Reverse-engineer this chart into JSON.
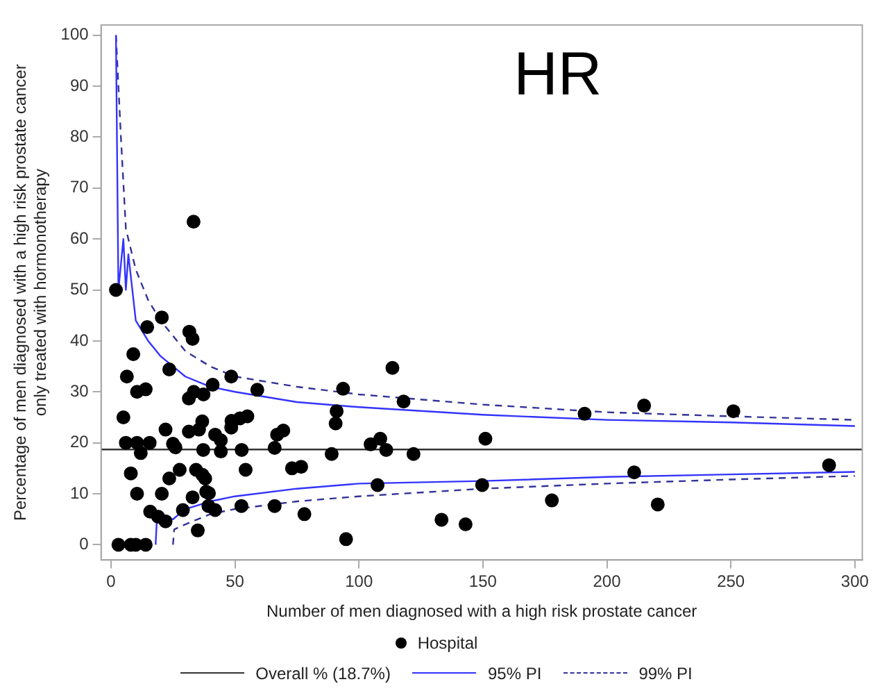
{
  "chart_data": {
    "type": "scatter",
    "title": "HR",
    "xlabel": "Number of men diagnosed with a high risk prostate cancer",
    "ylabel": "Percentage of men diagnosed with a high risk prostate cancer\nonly treated with hormonotherapy",
    "xlim": [
      -4,
      303
    ],
    "xticks": [
      0,
      50,
      100,
      150,
      200,
      250,
      300
    ],
    "ylim": [
      -3,
      102
    ],
    "yticks": [
      0,
      10,
      20,
      30,
      40,
      50,
      60,
      70,
      80,
      90,
      100
    ],
    "grid": false,
    "legend": "bottom",
    "marker": "circle",
    "ref_lines": [
      {
        "axis": "y",
        "value": 18.7,
        "label": "Overall % (18.7%)",
        "color": "#333333",
        "line_style": "solid"
      }
    ],
    "series": [
      {
        "name": "Hospital",
        "color": "#000000",
        "x": [
          2,
          3,
          8,
          10,
          14,
          5,
          6,
          6.4,
          9,
          8,
          10.5,
          10.5,
          12,
          10.5,
          14,
          14.6,
          15.6,
          15.8,
          19,
          20.5,
          20.5,
          22,
          22,
          23.5,
          23.5,
          25,
          26,
          27.7,
          29,
          31.4,
          31.4,
          31.6,
          32.9,
          33.3,
          32.9,
          33.4,
          34.3,
          35,
          35.5,
          36.8,
          37.2,
          36.9,
          38,
          37.3,
          38.4,
          39.5,
          39.3,
          42,
          41,
          42,
          44.3,
          44.3,
          48.5,
          48.5,
          48.6,
          52,
          52.7,
          54.3,
          55,
          52.6,
          59,
          66,
          66,
          67,
          69.5,
          73,
          76.7,
          78,
          89,
          90.6,
          91,
          93.6,
          94.8,
          104.7,
          107.5,
          108.6,
          111,
          113.5,
          118,
          122,
          133.3,
          143,
          149.7,
          151,
          177.8,
          191,
          215,
          251,
          211,
          220.5,
          289.6
        ],
        "values": [
          50,
          0,
          0,
          0,
          0,
          25,
          20,
          33,
          37.4,
          14,
          10,
          20,
          18,
          30,
          30.5,
          42.7,
          20,
          6.5,
          5.5,
          44.6,
          10,
          4.6,
          22.6,
          34.4,
          13,
          19.8,
          19.1,
          14.7,
          6.8,
          28.7,
          22.2,
          41.8,
          40.4,
          63.4,
          9.3,
          30,
          14.7,
          2.8,
          22.6,
          24.2,
          18.6,
          13.7,
          13,
          29.5,
          10.4,
          10.1,
          7.6,
          6.8,
          31.4,
          21.6,
          20.5,
          18.3,
          33,
          23,
          24.3,
          24.8,
          18.6,
          14.7,
          25.2,
          7.6,
          30.4,
          7.6,
          19,
          21.6,
          22.4,
          15,
          15.3,
          6,
          17.8,
          23.8,
          26.2,
          30.6,
          1.1,
          19.7,
          11.7,
          20.8,
          18.6,
          34.7,
          28.1,
          17.8,
          4.9,
          4,
          11.7,
          20.8,
          8.7,
          25.7,
          27.3,
          26.2,
          14.2,
          7.9,
          15.6
        ]
      },
      {
        "name": "95% PI",
        "type": "line",
        "color": "#3333ff",
        "line_style": "solid",
        "marker": "none",
        "x": [
          2,
          3,
          5,
          6,
          7,
          10,
          15,
          20,
          30,
          40,
          50,
          75,
          100,
          150,
          200,
          250,
          300
        ],
        "values": [
          100,
          50,
          60,
          50,
          57,
          44,
          40,
          37,
          33,
          31,
          30,
          28,
          27,
          25.5,
          24.5,
          24,
          23.3
        ]
      },
      {
        "type": "line",
        "color": "#3333ff",
        "line_style": "solid",
        "marker": "none",
        "x": [
          18,
          18.5,
          25,
          30,
          40,
          50,
          75,
          100,
          150,
          200,
          250,
          300
        ],
        "values": [
          0,
          5,
          5,
          7,
          8.5,
          9.5,
          11,
          12,
          12.5,
          13.3,
          13.8,
          14.3
        ]
      },
      {
        "name": "99% PI",
        "type": "line",
        "color": "#333399",
        "line_style": "dashed",
        "marker": "none",
        "x": [
          2,
          4,
          6,
          10,
          15,
          20,
          30,
          40,
          50,
          75,
          100,
          150,
          200,
          250,
          300
        ],
        "values": [
          100,
          80,
          62,
          54,
          48,
          44,
          38,
          35,
          33,
          31,
          29.5,
          27.5,
          26,
          25.2,
          24.5
        ]
      },
      {
        "type": "line",
        "color": "#333399",
        "line_style": "dashed",
        "marker": "none",
        "x": [
          25,
          25.5,
          30,
          40,
          50,
          75,
          100,
          150,
          200,
          250,
          300
        ],
        "values": [
          0,
          3,
          4,
          6,
          7,
          8.5,
          9.5,
          11,
          12,
          12.8,
          13.5
        ]
      }
    ]
  }
}
